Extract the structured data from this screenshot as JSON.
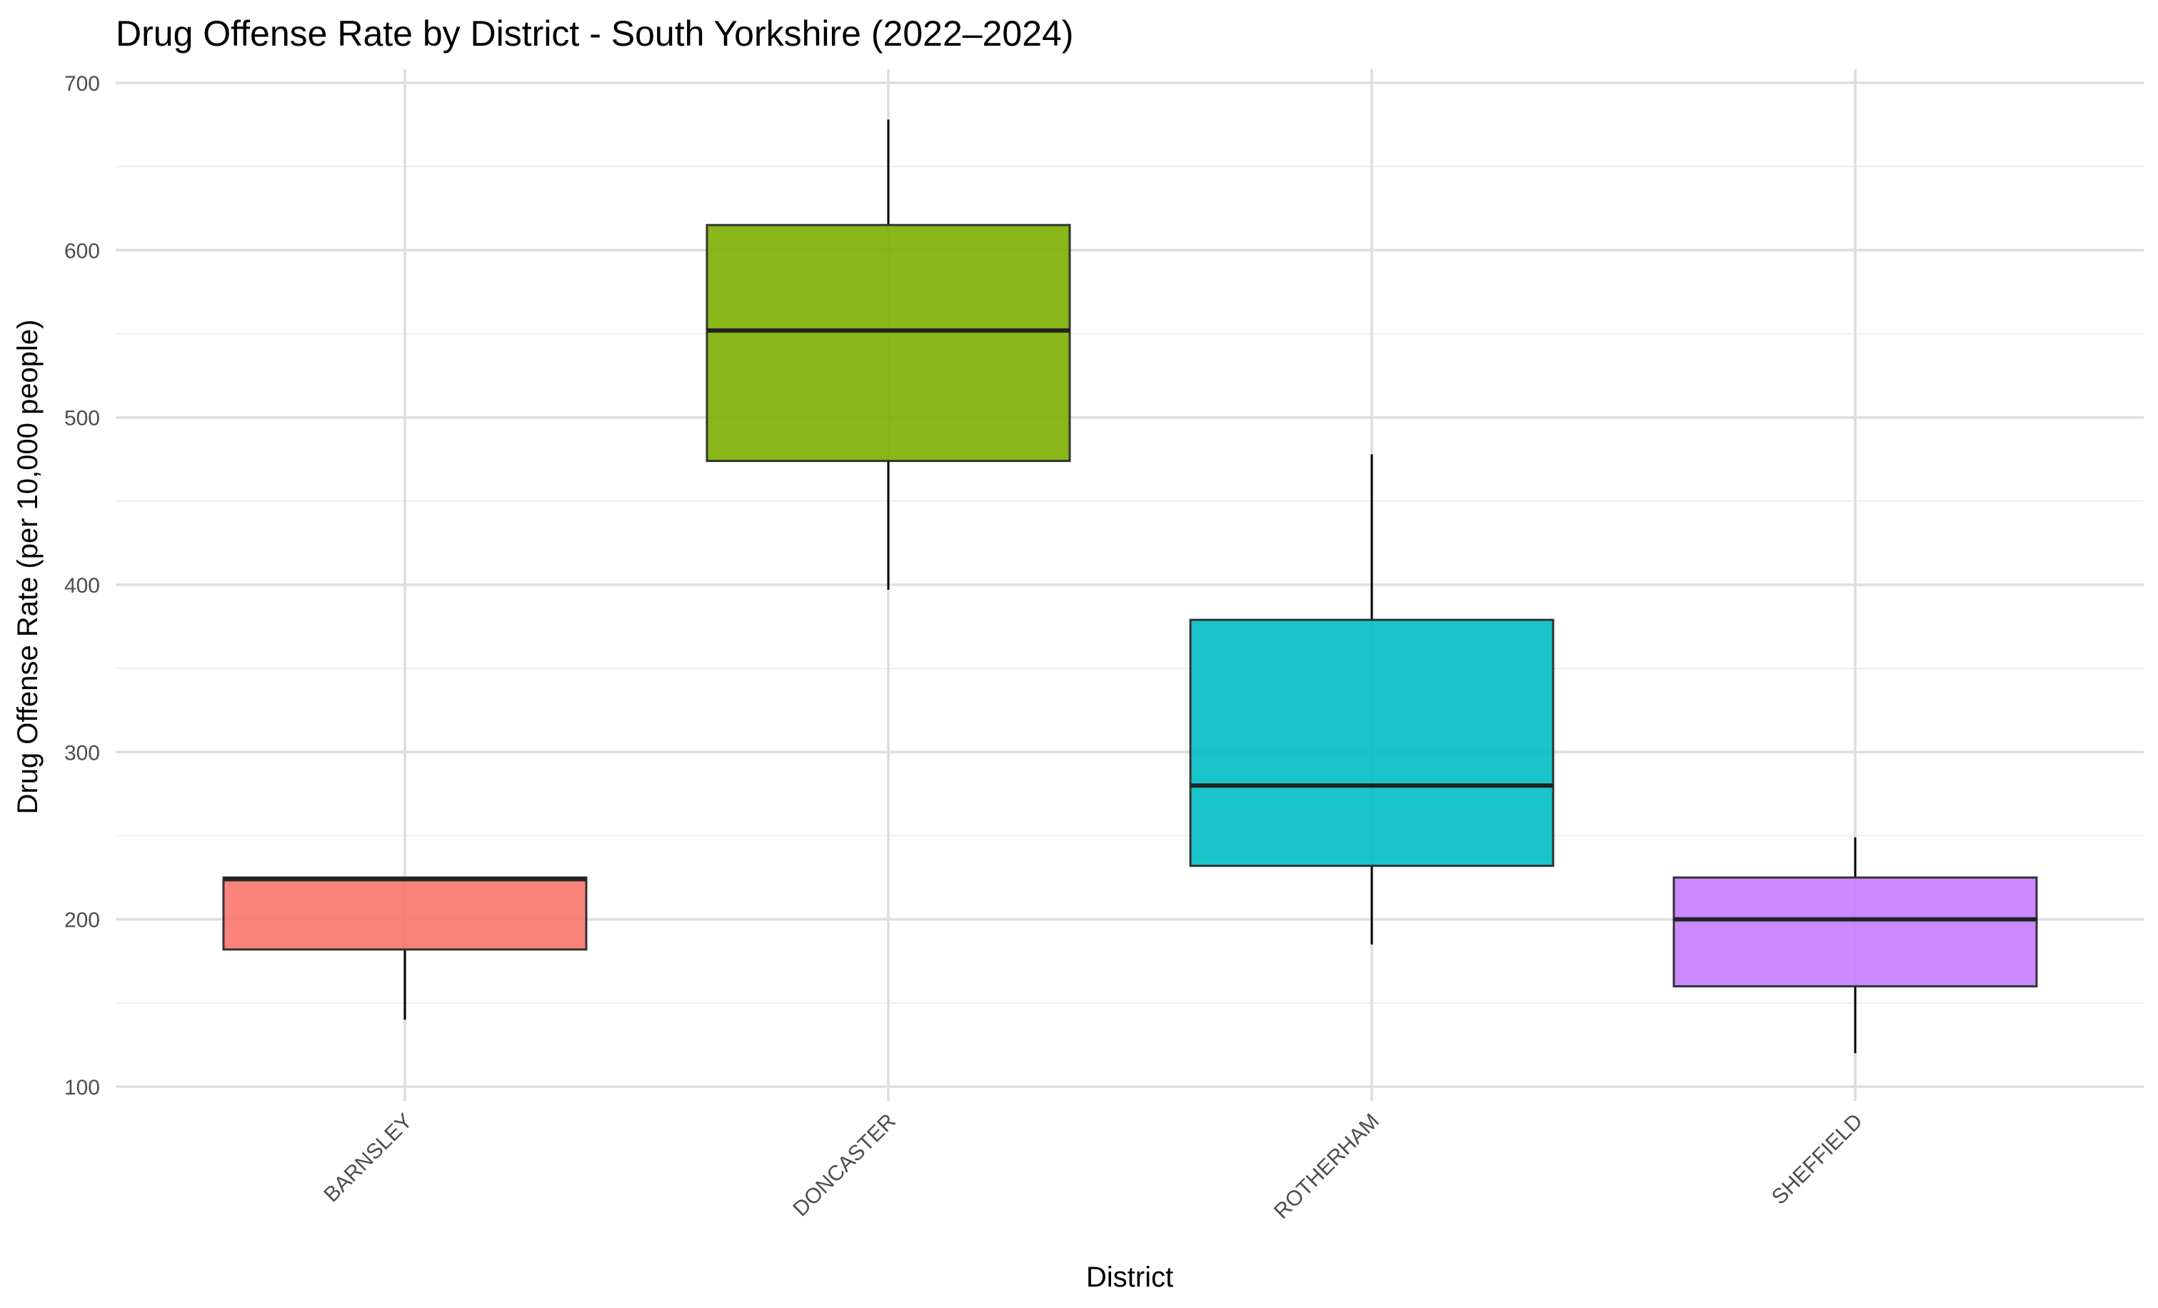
{
  "chart_data": {
    "type": "box",
    "title": "Drug Offense Rate by District - South Yorkshire (2022–2024)",
    "xlabel": "District",
    "ylabel": "Drug Offense Rate (per 10,000 people)",
    "ylim": [
      90,
      710
    ],
    "y_ticks": [
      100,
      200,
      300,
      400,
      500,
      600,
      700
    ],
    "grid": true,
    "legend": "none",
    "categories": [
      "BARNSLEY",
      "DONCASTER",
      "ROTHERHAM",
      "SHEFFIELD"
    ],
    "boxes": [
      {
        "category": "BARNSLEY",
        "min": 140,
        "q1": 182,
        "median": 224,
        "q3": 225,
        "max": 225,
        "color": "#F8766D"
      },
      {
        "category": "DONCASTER",
        "min": 397,
        "q1": 474,
        "median": 552,
        "q3": 615,
        "max": 678,
        "color": "#7CAE00"
      },
      {
        "category": "ROTHERHAM",
        "min": 185,
        "q1": 232,
        "median": 280,
        "q3": 379,
        "max": 478,
        "color": "#00BFC4"
      },
      {
        "category": "SHEFFIELD",
        "min": 120,
        "q1": 160,
        "median": 200,
        "q3": 225,
        "max": 249,
        "color": "#C77CFF"
      }
    ]
  }
}
